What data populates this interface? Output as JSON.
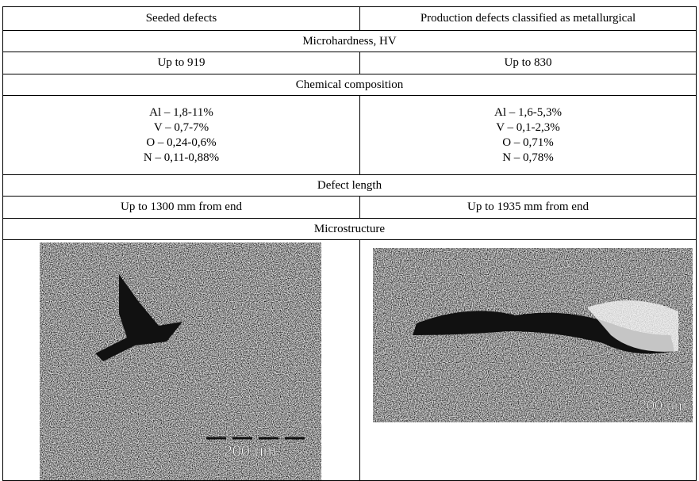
{
  "table": {
    "header": [
      "Seeded defects",
      "Production defects classified as metallurgical"
    ],
    "sections": [
      {
        "title": "Microhardness, HV",
        "cells": [
          [
            "Up to 919"
          ],
          [
            "Up to 830"
          ]
        ]
      },
      {
        "title": "Chemical composition",
        "cells": [
          [
            "Al – 1,8-11%",
            "V – 0,7-7%",
            "O – 0,24-0,6%",
            "N – 0,11-0,88%"
          ],
          [
            "Al – 1,6-5,3%",
            "V – 0,1-2,3%",
            "O – 0,71%",
            "N – 0,78%"
          ]
        ]
      },
      {
        "title": "Defect length",
        "cells": [
          [
            "Up to 1300 mm from end"
          ],
          [
            "Up to 1935 mm from end"
          ]
        ]
      },
      {
        "title": "Microstructure",
        "scale_labels": [
          "200 um",
          "200 um"
        ]
      }
    ]
  }
}
